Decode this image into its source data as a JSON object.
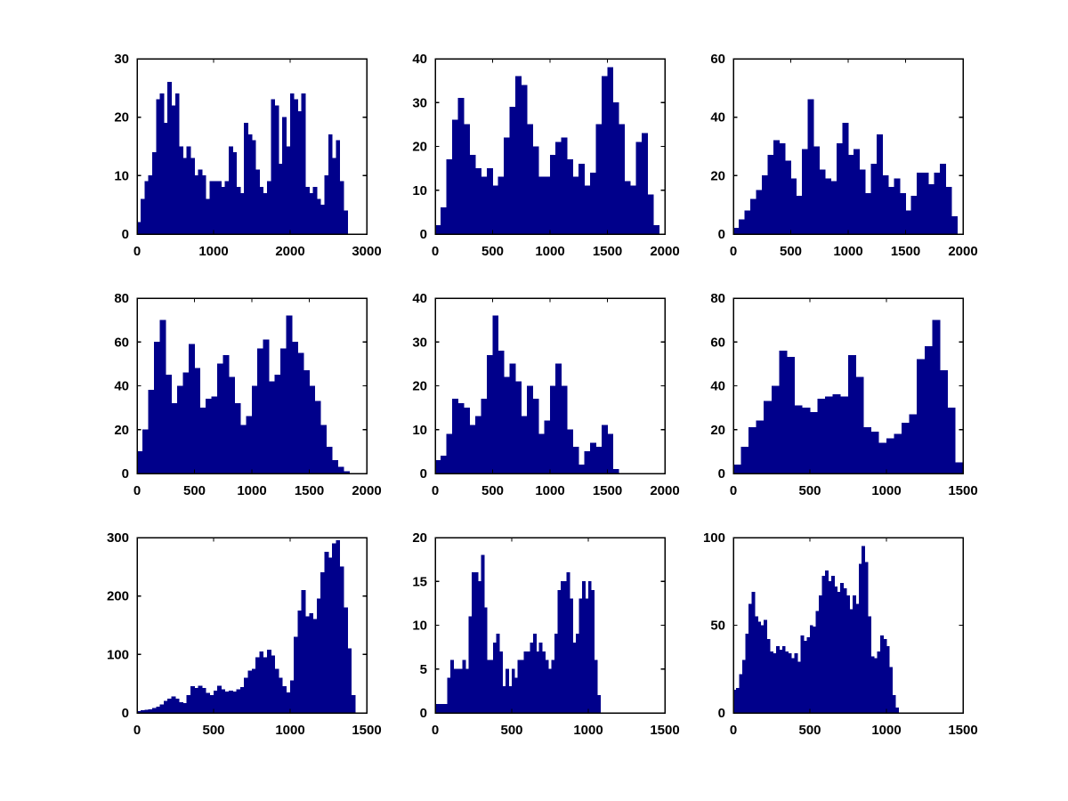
{
  "figure": {
    "description": "3x3 grid of MATLAB-style histograms, dark blue bars on white, black box axes",
    "background": "#FFFFFF",
    "bar_color": "#00008B",
    "axis_color": "#000000",
    "text_color": "#000000"
  },
  "chart_data": [
    {
      "type": "bar",
      "subtype": "histogram",
      "row": 0,
      "col": 0,
      "title": "",
      "xlabel": "",
      "ylabel": "",
      "xlim": [
        0,
        3000
      ],
      "ylim": [
        0,
        30
      ],
      "xticks": [
        0,
        1000,
        2000,
        3000
      ],
      "yticks": [
        0,
        10,
        20,
        30
      ],
      "bin_start": 0,
      "bin_width": 50,
      "values": [
        2,
        6,
        9,
        10,
        14,
        23,
        24,
        19,
        26,
        22,
        24,
        15,
        13,
        15,
        13,
        10,
        11,
        10,
        6,
        9,
        9,
        9,
        8,
        9,
        15,
        14,
        8,
        7,
        19,
        17,
        16,
        11,
        8,
        7,
        9,
        23,
        22,
        12,
        20,
        15,
        24,
        23,
        21,
        24,
        8,
        7,
        8,
        6,
        5,
        10,
        17,
        13,
        16,
        9,
        4
      ]
    },
    {
      "type": "bar",
      "subtype": "histogram",
      "row": 0,
      "col": 1,
      "title": "",
      "xlabel": "",
      "ylabel": "",
      "xlim": [
        0,
        2000
      ],
      "ylim": [
        0,
        40
      ],
      "xticks": [
        0,
        500,
        1000,
        1500,
        2000
      ],
      "yticks": [
        0,
        10,
        20,
        30,
        40
      ],
      "bin_start": 0,
      "bin_width": 50,
      "values": [
        2,
        6,
        17,
        26,
        31,
        25,
        18,
        15,
        13,
        15,
        11,
        13,
        22,
        29,
        36,
        34,
        25,
        20,
        13,
        13,
        18,
        21,
        22,
        17,
        13,
        16,
        11,
        14,
        25,
        36,
        38,
        30,
        25,
        12,
        11,
        21,
        23,
        9,
        2
      ]
    },
    {
      "type": "bar",
      "subtype": "histogram",
      "row": 0,
      "col": 2,
      "title": "",
      "xlabel": "",
      "ylabel": "",
      "xlim": [
        0,
        2000
      ],
      "ylim": [
        0,
        60
      ],
      "xticks": [
        0,
        500,
        1000,
        1500,
        2000
      ],
      "yticks": [
        0,
        20,
        40,
        60
      ],
      "bin_start": 0,
      "bin_width": 50,
      "values": [
        2,
        5,
        8,
        12,
        15,
        20,
        27,
        32,
        31,
        25,
        19,
        13,
        29,
        46,
        30,
        22,
        19,
        18,
        31,
        38,
        27,
        29,
        22,
        14,
        24,
        34,
        20,
        16,
        19,
        14,
        8,
        13,
        21,
        21,
        17,
        21,
        24,
        16,
        6
      ]
    },
    {
      "type": "bar",
      "subtype": "histogram",
      "row": 1,
      "col": 0,
      "title": "",
      "xlabel": "",
      "ylabel": "",
      "xlim": [
        0,
        2000
      ],
      "ylim": [
        0,
        80
      ],
      "xticks": [
        0,
        500,
        1000,
        1500,
        2000
      ],
      "yticks": [
        0,
        20,
        40,
        60,
        80
      ],
      "bin_start": 0,
      "bin_width": 50,
      "values": [
        10,
        20,
        38,
        60,
        70,
        45,
        32,
        40,
        46,
        59,
        48,
        30,
        34,
        35,
        50,
        54,
        44,
        32,
        22,
        26,
        40,
        57,
        61,
        42,
        45,
        57,
        72,
        60,
        55,
        47,
        40,
        33,
        22,
        12,
        6,
        3,
        1
      ]
    },
    {
      "type": "bar",
      "subtype": "histogram",
      "row": 1,
      "col": 1,
      "title": "",
      "xlabel": "",
      "ylabel": "",
      "xlim": [
        0,
        2000
      ],
      "ylim": [
        0,
        40
      ],
      "xticks": [
        0,
        500,
        1000,
        1500,
        2000
      ],
      "yticks": [
        0,
        10,
        20,
        30,
        40
      ],
      "bin_start": 0,
      "bin_width": 50,
      "values": [
        3,
        4,
        9,
        17,
        16,
        15,
        11,
        13,
        17,
        27,
        36,
        28,
        22,
        25,
        21,
        13,
        20,
        17,
        9,
        12,
        20,
        25,
        20,
        10,
        6,
        2,
        5,
        7,
        6,
        11,
        9,
        1
      ]
    },
    {
      "type": "bar",
      "subtype": "histogram",
      "row": 1,
      "col": 2,
      "title": "",
      "xlabel": "",
      "ylabel": "",
      "xlim": [
        0,
        1500
      ],
      "ylim": [
        0,
        80
      ],
      "xticks": [
        0,
        500,
        1000,
        1500
      ],
      "yticks": [
        0,
        20,
        40,
        60,
        80
      ],
      "bin_start": 0,
      "bin_width": 50,
      "values": [
        4,
        12,
        21,
        24,
        33,
        40,
        56,
        53,
        31,
        30,
        28,
        34,
        35,
        36,
        35,
        54,
        44,
        21,
        19,
        14,
        16,
        18,
        23,
        27,
        52,
        58,
        70,
        47,
        30,
        5
      ]
    },
    {
      "type": "bar",
      "subtype": "histogram",
      "row": 2,
      "col": 0,
      "title": "",
      "xlabel": "",
      "ylabel": "",
      "xlim": [
        0,
        1500
      ],
      "ylim": [
        0,
        300
      ],
      "xticks": [
        0,
        500,
        1000,
        1500
      ],
      "yticks": [
        0,
        100,
        200,
        300
      ],
      "bin_start": 0,
      "bin_width": 25,
      "values": [
        3,
        4,
        5,
        6,
        8,
        10,
        14,
        20,
        24,
        28,
        24,
        18,
        16,
        30,
        45,
        42,
        46,
        42,
        34,
        30,
        38,
        46,
        40,
        36,
        38,
        36,
        40,
        44,
        60,
        72,
        75,
        95,
        105,
        95,
        108,
        98,
        75,
        60,
        45,
        35,
        55,
        130,
        175,
        210,
        165,
        170,
        160,
        195,
        240,
        275,
        265,
        290,
        295,
        250,
        180,
        110,
        30
      ]
    },
    {
      "type": "bar",
      "subtype": "histogram",
      "row": 2,
      "col": 1,
      "title": "",
      "xlabel": "",
      "ylabel": "",
      "xlim": [
        0,
        1500
      ],
      "ylim": [
        0,
        20
      ],
      "xticks": [
        0,
        500,
        1000,
        1500
      ],
      "yticks": [
        0,
        5,
        10,
        15,
        20
      ],
      "bin_start": 0,
      "bin_width": 20,
      "values": [
        1,
        1,
        1,
        1,
        4,
        6,
        5,
        5,
        5,
        6,
        5,
        11,
        16,
        16,
        15,
        18,
        12,
        6,
        6,
        8,
        9,
        7,
        3,
        5,
        3,
        5,
        4,
        6,
        6,
        7,
        7,
        8,
        9,
        7,
        8,
        7,
        6,
        5,
        6,
        9,
        14,
        15,
        15,
        16,
        13,
        8,
        9,
        13,
        15,
        13,
        15,
        14,
        6,
        2
      ]
    },
    {
      "type": "bar",
      "subtype": "histogram",
      "row": 2,
      "col": 2,
      "title": "",
      "xlabel": "",
      "ylabel": "",
      "xlim": [
        0,
        1500
      ],
      "ylim": [
        0,
        100
      ],
      "xticks": [
        0,
        500,
        1000,
        1500
      ],
      "yticks": [
        0,
        50,
        100
      ],
      "bin_start": 0,
      "bin_width": 20,
      "values": [
        13,
        14,
        22,
        30,
        45,
        62,
        69,
        55,
        52,
        50,
        53,
        42,
        35,
        34,
        38,
        36,
        38,
        35,
        34,
        31,
        34,
        29,
        44,
        41,
        43,
        50,
        49,
        58,
        67,
        78,
        81,
        75,
        78,
        72,
        69,
        74,
        71,
        67,
        59,
        67,
        62,
        85,
        95,
        86,
        55,
        32,
        31,
        35,
        44,
        42,
        38,
        26,
        10,
        3
      ]
    }
  ]
}
